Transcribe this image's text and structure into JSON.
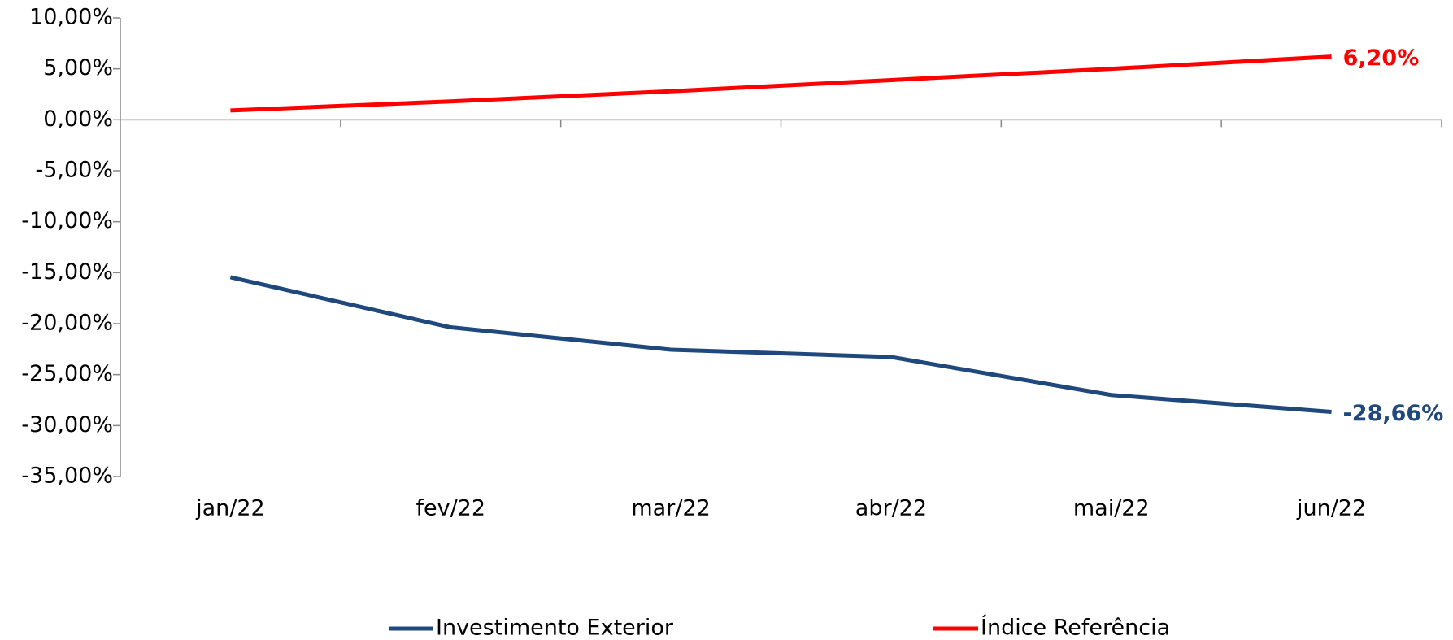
{
  "chart_data": {
    "type": "line",
    "categories": [
      "jan/22",
      "fev/22",
      "mar/22",
      "abr/22",
      "mai/22",
      "jun/22"
    ],
    "series": [
      {
        "name": "Investimento Exterior",
        "color": "#1f497d",
        "values": [
          -15.45,
          -20.36,
          -22.55,
          -23.27,
          -27.0,
          -28.66
        ],
        "value_labels": [
          null,
          null,
          null,
          null,
          null,
          "-28,66%"
        ]
      },
      {
        "name": "Índice Referência",
        "color": "#ff0000",
        "values": [
          0.91,
          1.8,
          2.8,
          3.9,
          5.0,
          6.2
        ],
        "value_labels": [
          null,
          null,
          null,
          null,
          null,
          "6,20%"
        ]
      }
    ],
    "ylim": [
      -35,
      10
    ],
    "yticks": [
      {
        "value": 10,
        "label": "10,00%"
      },
      {
        "value": 5,
        "label": "5,00%"
      },
      {
        "value": 0,
        "label": "0,00%"
      },
      {
        "value": -5,
        "label": "-5,00%"
      },
      {
        "value": -10,
        "label": "-10,00%"
      },
      {
        "value": -15,
        "label": "-15,00%"
      },
      {
        "value": -20,
        "label": "-20,00%"
      },
      {
        "value": -25,
        "label": "-25,00%"
      },
      {
        "value": -30,
        "label": "-30,00%"
      },
      {
        "value": -35,
        "label": "-35,00%"
      }
    ],
    "legend": "bottom"
  }
}
